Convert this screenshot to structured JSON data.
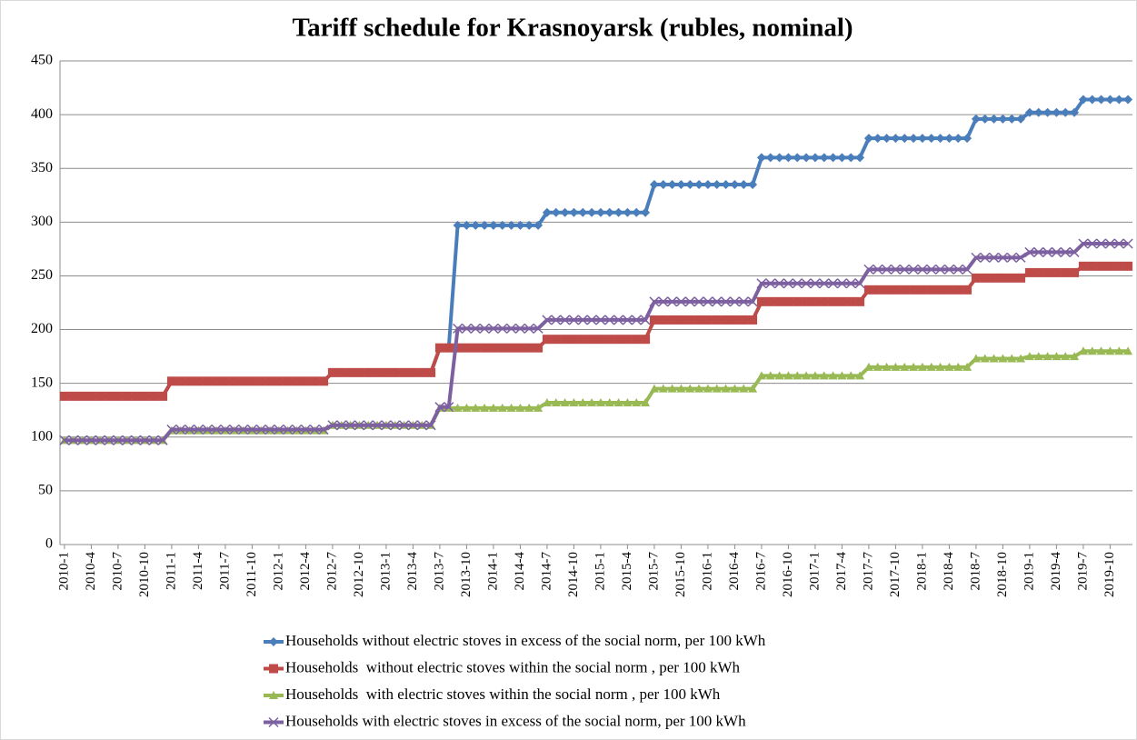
{
  "chart_data": {
    "type": "line",
    "title": "Tariff schedule for Krasnoyarsk (rubles, nominal)",
    "categories": [
      "2010-1",
      null,
      null,
      "2010-4",
      null,
      null,
      "2010-7",
      null,
      null,
      "2010-10",
      null,
      null,
      "2011-1",
      null,
      null,
      "2011-4",
      null,
      null,
      "2011-7",
      null,
      null,
      "2011-10",
      null,
      null,
      "2012-1",
      null,
      null,
      "2012-4",
      null,
      null,
      "2012-7",
      null,
      null,
      "2012-10",
      null,
      null,
      "2013-1",
      null,
      null,
      "2013-4",
      null,
      null,
      "2013-7",
      null,
      null,
      "2013-10",
      null,
      null,
      "2014-1",
      null,
      null,
      "2014-4",
      null,
      null,
      "2014-7",
      null,
      null,
      "2014-10",
      null,
      null,
      "2015-1",
      null,
      null,
      "2015-4",
      null,
      null,
      "2015-7",
      null,
      null,
      "2015-10",
      null,
      null,
      "2016-1",
      null,
      null,
      "2016-4",
      null,
      null,
      "2016-7",
      null,
      null,
      "2016-10",
      null,
      null,
      "2017-1",
      null,
      null,
      "2017-4",
      null,
      null,
      "2017-7",
      null,
      null,
      "2017-10",
      null,
      null,
      "2018-1",
      null,
      null,
      "2018-4",
      null,
      null,
      "2018-7",
      null,
      null,
      "2018-10",
      null,
      null,
      "2019-1",
      null,
      null,
      "2019-4",
      null,
      null,
      "2019-7",
      null,
      null,
      "2019-10",
      null,
      null
    ],
    "series": [
      {
        "name": "Households without electric stoves in excess of the social norm, per 100 kWh",
        "color": "#4a7ebb",
        "marker": "diamond",
        "values": [
          138,
          138,
          138,
          138,
          138,
          138,
          138,
          138,
          138,
          138,
          138,
          138,
          152,
          152,
          152,
          152,
          152,
          152,
          152,
          152,
          152,
          152,
          152,
          152,
          152,
          152,
          152,
          152,
          152,
          152,
          160,
          160,
          160,
          160,
          160,
          160,
          160,
          160,
          160,
          160,
          160,
          160,
          183,
          183,
          297,
          297,
          297,
          297,
          297,
          297,
          297,
          297,
          297,
          297,
          309,
          309,
          309,
          309,
          309,
          309,
          309,
          309,
          309,
          309,
          309,
          309,
          335,
          335,
          335,
          335,
          335,
          335,
          335,
          335,
          335,
          335,
          335,
          335,
          360,
          360,
          360,
          360,
          360,
          360,
          360,
          360,
          360,
          360,
          360,
          360,
          378,
          378,
          378,
          378,
          378,
          378,
          378,
          378,
          378,
          378,
          378,
          378,
          396,
          396,
          396,
          396,
          396,
          396,
          402,
          402,
          402,
          402,
          402,
          402,
          414,
          414,
          414,
          414,
          414,
          414
        ]
      },
      {
        "name": "Households  without electric stoves within the social norm , per 100 kWh",
        "color": "#be4b48",
        "marker": "square",
        "values": [
          138,
          138,
          138,
          138,
          138,
          138,
          138,
          138,
          138,
          138,
          138,
          138,
          152,
          152,
          152,
          152,
          152,
          152,
          152,
          152,
          152,
          152,
          152,
          152,
          152,
          152,
          152,
          152,
          152,
          152,
          160,
          160,
          160,
          160,
          160,
          160,
          160,
          160,
          160,
          160,
          160,
          160,
          183,
          183,
          183,
          183,
          183,
          183,
          183,
          183,
          183,
          183,
          183,
          183,
          191,
          191,
          191,
          191,
          191,
          191,
          191,
          191,
          191,
          191,
          191,
          191,
          209,
          209,
          209,
          209,
          209,
          209,
          209,
          209,
          209,
          209,
          209,
          209,
          226,
          226,
          226,
          226,
          226,
          226,
          226,
          226,
          226,
          226,
          226,
          226,
          237,
          237,
          237,
          237,
          237,
          237,
          237,
          237,
          237,
          237,
          237,
          237,
          248,
          248,
          248,
          248,
          248,
          248,
          253,
          253,
          253,
          253,
          253,
          253,
          259,
          259,
          259,
          259,
          259,
          259
        ]
      },
      {
        "name": "Households  with electric stoves within the social norm , per 100 kWh",
        "color": "#98b954",
        "marker": "triangle",
        "values": [
          97,
          97,
          97,
          97,
          97,
          97,
          97,
          97,
          97,
          97,
          97,
          97,
          106,
          106,
          106,
          106,
          106,
          106,
          106,
          106,
          106,
          106,
          106,
          106,
          106,
          106,
          106,
          106,
          106,
          106,
          111,
          111,
          111,
          111,
          111,
          111,
          111,
          111,
          111,
          111,
          111,
          111,
          127,
          127,
          127,
          127,
          127,
          127,
          127,
          127,
          127,
          127,
          127,
          127,
          132,
          132,
          132,
          132,
          132,
          132,
          132,
          132,
          132,
          132,
          132,
          132,
          145,
          145,
          145,
          145,
          145,
          145,
          145,
          145,
          145,
          145,
          145,
          145,
          157,
          157,
          157,
          157,
          157,
          157,
          157,
          157,
          157,
          157,
          157,
          157,
          165,
          165,
          165,
          165,
          165,
          165,
          165,
          165,
          165,
          165,
          165,
          165,
          173,
          173,
          173,
          173,
          173,
          173,
          175,
          175,
          175,
          175,
          175,
          175,
          180,
          180,
          180,
          180,
          180,
          180
        ]
      },
      {
        "name": "Households with electric stoves in excess of the social norm, per 100 kWh",
        "color": "#7d60a0",
        "marker": "x",
        "values": [
          97,
          97,
          97,
          97,
          97,
          97,
          97,
          97,
          97,
          97,
          97,
          97,
          107,
          107,
          107,
          107,
          107,
          107,
          107,
          107,
          107,
          107,
          107,
          107,
          107,
          107,
          107,
          107,
          107,
          107,
          111,
          111,
          111,
          111,
          111,
          111,
          111,
          111,
          111,
          111,
          111,
          111,
          128,
          128,
          201,
          201,
          201,
          201,
          201,
          201,
          201,
          201,
          201,
          201,
          209,
          209,
          209,
          209,
          209,
          209,
          209,
          209,
          209,
          209,
          209,
          209,
          226,
          226,
          226,
          226,
          226,
          226,
          226,
          226,
          226,
          226,
          226,
          226,
          243,
          243,
          243,
          243,
          243,
          243,
          243,
          243,
          243,
          243,
          243,
          243,
          256,
          256,
          256,
          256,
          256,
          256,
          256,
          256,
          256,
          256,
          256,
          256,
          267,
          267,
          267,
          267,
          267,
          267,
          272,
          272,
          272,
          272,
          272,
          272,
          280,
          280,
          280,
          280,
          280,
          280
        ]
      }
    ],
    "ylim": [
      0,
      450
    ],
    "yticks": [
      0,
      50,
      100,
      150,
      200,
      250,
      300,
      350,
      400,
      450
    ],
    "grid": true,
    "legend": "bottom"
  }
}
